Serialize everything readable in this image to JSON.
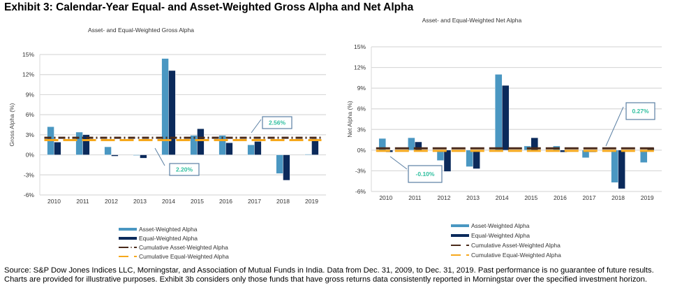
{
  "exhibit_title": "Exhibit 3: Calendar-Year Equal- and Asset-Weighted Gross Alpha and  Net Alpha",
  "source_note": "Source: S&P Dow Jones Indices LLC, Morningstar, and Association of Mutual Funds in India. Data from Dec. 31, 2009, to Dec. 31, 2019. Past performance is no guarantee of future results. Charts are provided for illustrative purposes. Exhibit 3b considers only those funds that have gross returns data consistently reported in Morningstar over the specified investment horizon.",
  "colors": {
    "asset": "#4a97c2",
    "equal": "#0b2a5b",
    "cum_asset": "#4a2a1a",
    "cum_equal": "#f6a81c",
    "callout_text": "#2fbf9f",
    "callout_border": "#5a7fa3",
    "grid": "#d9d9d9"
  },
  "chart_data": [
    {
      "type": "bar",
      "title": "Asset- and Equal-Weighted Gross Alpha",
      "xlabel": "",
      "ylabel": "Gross Alpha (%)",
      "ylim": [
        -6,
        15
      ],
      "yticks": [
        -6,
        -3,
        0,
        3,
        6,
        9,
        12,
        15
      ],
      "ytick_labels": [
        "-6%",
        "-3%",
        "0%",
        "3%",
        "6%",
        "9%",
        "12%",
        "15%"
      ],
      "grid": true,
      "categories": [
        "2010",
        "2011",
        "2012",
        "2013",
        "2014",
        "2015",
        "2016",
        "2017",
        "2018",
        "2019"
      ],
      "series": [
        {
          "name": "Asset-Weighted Alpha",
          "kind": "bar",
          "values": [
            4.2,
            3.4,
            1.2,
            -0.1,
            14.4,
            2.9,
            2.9,
            1.5,
            -2.8,
            0.1
          ]
        },
        {
          "name": "Equal-Weighted Alpha",
          "kind": "bar",
          "values": [
            1.9,
            3.0,
            -0.2,
            -0.5,
            12.6,
            3.9,
            1.8,
            2.0,
            -3.8,
            2.4
          ]
        },
        {
          "name": "Cumulative Asset-Weighted Alpha",
          "kind": "line",
          "style": "dash-dot",
          "value": 2.56
        },
        {
          "name": "Cumulative Equal-Weighted Alpha",
          "kind": "line",
          "style": "dash",
          "value": 2.2
        }
      ],
      "annotations": [
        {
          "text": "2.56%",
          "target": "Cumulative Asset-Weighted Alpha",
          "position": "above-right"
        },
        {
          "text": "2.20%",
          "target": "Cumulative Equal-Weighted Alpha",
          "position": "below-middle"
        }
      ],
      "legend": {
        "placement": "bottom",
        "items": [
          "Asset-Weighted Alpha",
          "Equal-Weighted Alpha",
          "Cumulative Asset-Weighted Alpha",
          "Cumulative Equal-Weighted Alpha"
        ]
      }
    },
    {
      "type": "bar",
      "title": "Asset- and Equal-Weighted Net Alpha",
      "xlabel": "",
      "ylabel": "Net Alpha (%)",
      "ylim": [
        -6,
        15
      ],
      "yticks": [
        -6,
        -3,
        0,
        3,
        6,
        9,
        12,
        15
      ],
      "ytick_labels": [
        "-6%",
        "-3%",
        "0%",
        "3%",
        "6%",
        "9%",
        "12%",
        "15%"
      ],
      "grid": true,
      "categories": [
        "2010",
        "2011",
        "2012",
        "2013",
        "2014",
        "2015",
        "2016",
        "2017",
        "2018",
        "2019"
      ],
      "series": [
        {
          "name": "Asset-Weighted Alpha",
          "kind": "bar",
          "values": [
            1.7,
            1.8,
            -1.5,
            -2.4,
            11.0,
            0.6,
            0.6,
            -1.1,
            -4.7,
            -1.8
          ]
        },
        {
          "name": "Equal-Weighted Alpha",
          "kind": "bar",
          "values": [
            -0.3,
            1.2,
            -3.1,
            -2.7,
            9.4,
            1.8,
            -0.3,
            -0.3,
            -5.6,
            0.3
          ]
        },
        {
          "name": "Cumulative Asset-Weighted Alpha",
          "kind": "line",
          "style": "dash",
          "value": 0.27
        },
        {
          "name": "Cumulative Equal-Weighted Alpha",
          "kind": "line",
          "style": "dash",
          "value": -0.1
        }
      ],
      "annotations": [
        {
          "text": "0.27%",
          "target": "Cumulative Asset-Weighted Alpha",
          "position": "above-right"
        },
        {
          "text": "-0.10%",
          "target": "Cumulative Equal-Weighted Alpha",
          "position": "below-left"
        }
      ],
      "legend": {
        "placement": "bottom",
        "items": [
          "Asset-Weighted Alpha",
          "Equal-Weighted Alpha",
          "Cumulative Asset-Weighted Alpha",
          "Cumulative Equal-Weighted Alpha"
        ]
      }
    }
  ]
}
